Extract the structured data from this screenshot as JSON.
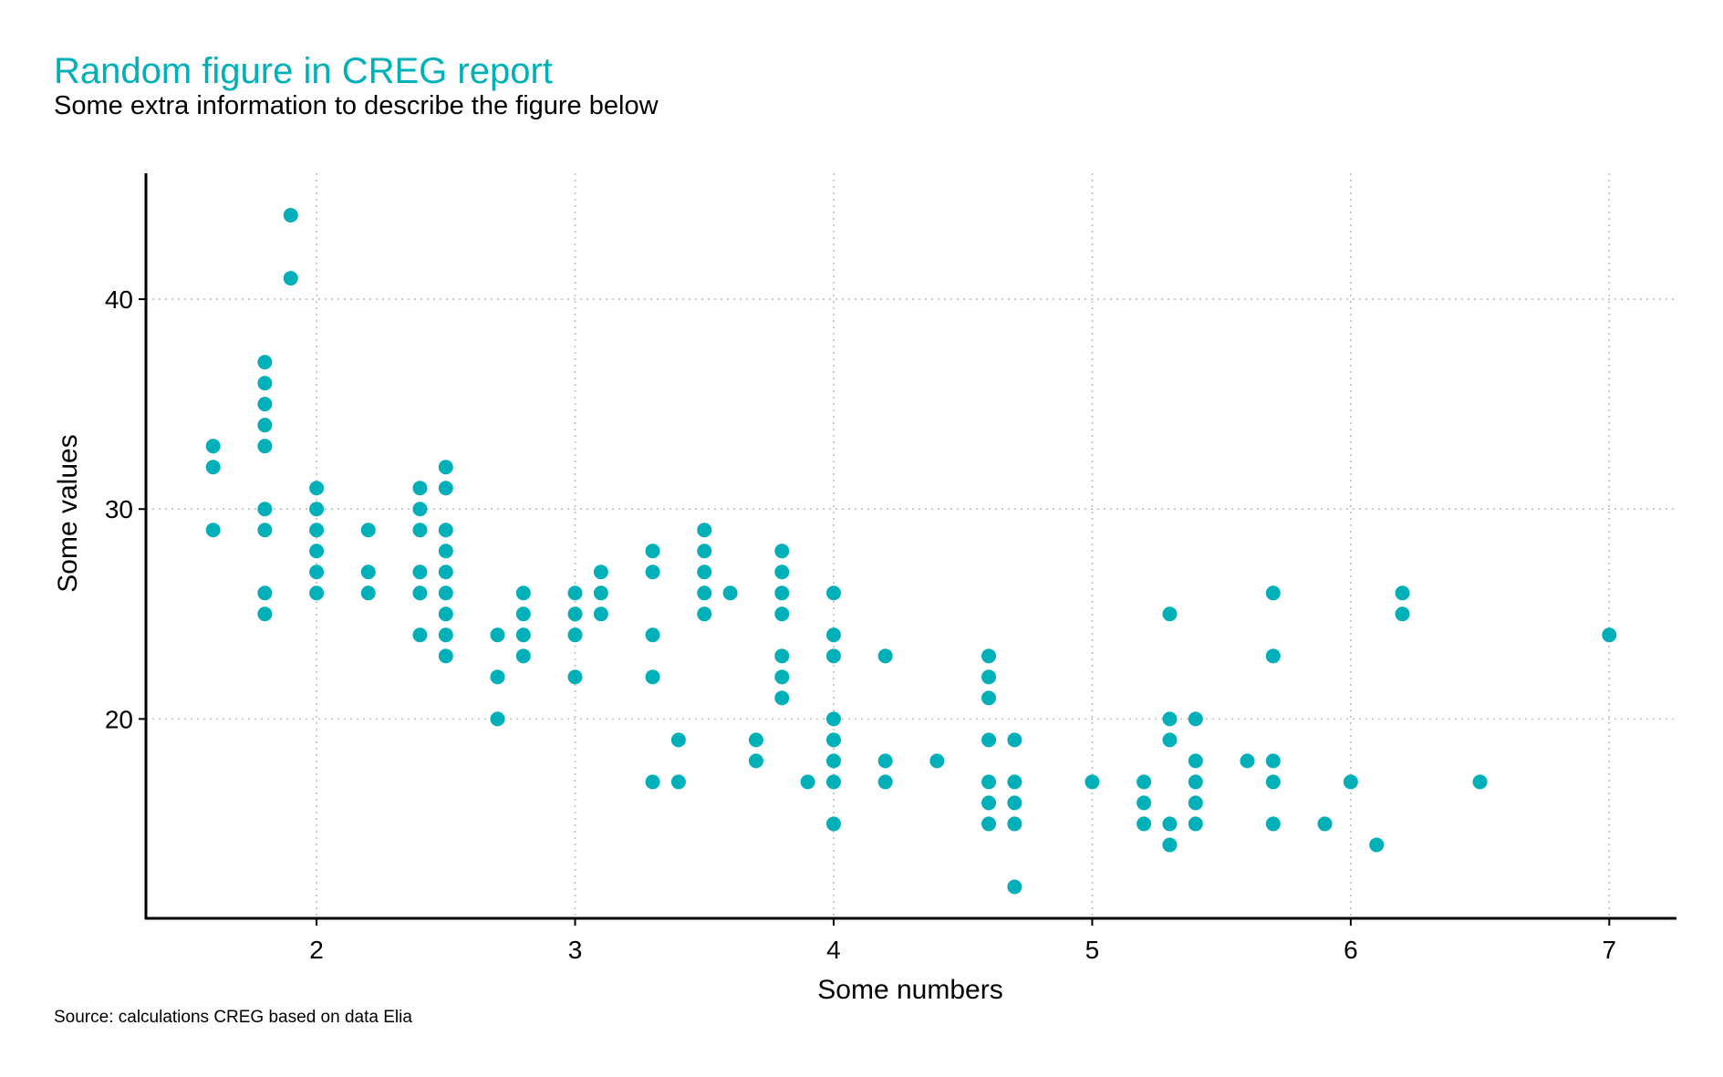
{
  "chart_data": {
    "type": "scatter",
    "title": "Random figure in CREG report",
    "subtitle": "Some extra information to describe the figure below",
    "caption": "Source: calculations CREG based on data Elia",
    "xlabel": "Some numbers",
    "ylabel": "Some values",
    "xlim": [
      1.34,
      7.26
    ],
    "ylim": [
      10.5,
      46.0
    ],
    "xticks": [
      2,
      3,
      4,
      5,
      6,
      7
    ],
    "yticks": [
      20,
      30,
      40
    ],
    "grid": true,
    "point_color": "#00B0B9",
    "points": [
      [
        1.6,
        33
      ],
      [
        1.6,
        32
      ],
      [
        1.6,
        29
      ],
      [
        1.8,
        37
      ],
      [
        1.8,
        36
      ],
      [
        1.8,
        35
      ],
      [
        1.8,
        34
      ],
      [
        1.8,
        33
      ],
      [
        1.8,
        30
      ],
      [
        1.8,
        29
      ],
      [
        1.8,
        26
      ],
      [
        1.8,
        25
      ],
      [
        1.9,
        44
      ],
      [
        1.9,
        41
      ],
      [
        2.0,
        31
      ],
      [
        2.0,
        30
      ],
      [
        2.0,
        29
      ],
      [
        2.0,
        28
      ],
      [
        2.0,
        27
      ],
      [
        2.0,
        26
      ],
      [
        2.2,
        29
      ],
      [
        2.2,
        27
      ],
      [
        2.2,
        26
      ],
      [
        2.4,
        31
      ],
      [
        2.4,
        30
      ],
      [
        2.4,
        29
      ],
      [
        2.4,
        27
      ],
      [
        2.4,
        26
      ],
      [
        2.4,
        24
      ],
      [
        2.5,
        32
      ],
      [
        2.5,
        31
      ],
      [
        2.5,
        29
      ],
      [
        2.5,
        28
      ],
      [
        2.5,
        27
      ],
      [
        2.5,
        26
      ],
      [
        2.5,
        25
      ],
      [
        2.5,
        24
      ],
      [
        2.5,
        23
      ],
      [
        2.7,
        24
      ],
      [
        2.7,
        22
      ],
      [
        2.7,
        20
      ],
      [
        2.8,
        26
      ],
      [
        2.8,
        25
      ],
      [
        2.8,
        24
      ],
      [
        2.8,
        23
      ],
      [
        3.0,
        26
      ],
      [
        3.0,
        25
      ],
      [
        3.0,
        24
      ],
      [
        3.0,
        22
      ],
      [
        3.1,
        27
      ],
      [
        3.1,
        26
      ],
      [
        3.1,
        25
      ],
      [
        3.3,
        28
      ],
      [
        3.3,
        27
      ],
      [
        3.3,
        24
      ],
      [
        3.3,
        22
      ],
      [
        3.3,
        17
      ],
      [
        3.4,
        19
      ],
      [
        3.4,
        17
      ],
      [
        3.5,
        29
      ],
      [
        3.5,
        28
      ],
      [
        3.5,
        27
      ],
      [
        3.5,
        26
      ],
      [
        3.5,
        25
      ],
      [
        3.6,
        26
      ],
      [
        3.7,
        19
      ],
      [
        3.7,
        18
      ],
      [
        3.8,
        28
      ],
      [
        3.8,
        27
      ],
      [
        3.8,
        26
      ],
      [
        3.8,
        25
      ],
      [
        3.8,
        23
      ],
      [
        3.8,
        22
      ],
      [
        3.8,
        21
      ],
      [
        3.9,
        17
      ],
      [
        4.0,
        26
      ],
      [
        4.0,
        24
      ],
      [
        4.0,
        23
      ],
      [
        4.0,
        20
      ],
      [
        4.0,
        19
      ],
      [
        4.0,
        18
      ],
      [
        4.0,
        17
      ],
      [
        4.0,
        15
      ],
      [
        4.2,
        23
      ],
      [
        4.2,
        18
      ],
      [
        4.2,
        17
      ],
      [
        4.4,
        18
      ],
      [
        4.6,
        23
      ],
      [
        4.6,
        22
      ],
      [
        4.6,
        21
      ],
      [
        4.6,
        19
      ],
      [
        4.6,
        17
      ],
      [
        4.6,
        16
      ],
      [
        4.6,
        15
      ],
      [
        4.7,
        19
      ],
      [
        4.7,
        17
      ],
      [
        4.7,
        16
      ],
      [
        4.7,
        15
      ],
      [
        4.7,
        12
      ],
      [
        5.0,
        17
      ],
      [
        5.2,
        17
      ],
      [
        5.2,
        16
      ],
      [
        5.2,
        15
      ],
      [
        5.3,
        25
      ],
      [
        5.3,
        20
      ],
      [
        5.3,
        19
      ],
      [
        5.3,
        15
      ],
      [
        5.3,
        14
      ],
      [
        5.4,
        20
      ],
      [
        5.4,
        18
      ],
      [
        5.4,
        17
      ],
      [
        5.4,
        16
      ],
      [
        5.4,
        15
      ],
      [
        5.6,
        18
      ],
      [
        5.7,
        26
      ],
      [
        5.7,
        23
      ],
      [
        5.7,
        18
      ],
      [
        5.7,
        17
      ],
      [
        5.7,
        15
      ],
      [
        5.9,
        15
      ],
      [
        6.0,
        17
      ],
      [
        6.1,
        14
      ],
      [
        6.2,
        26
      ],
      [
        6.2,
        25
      ],
      [
        6.5,
        17
      ],
      [
        7.0,
        24
      ]
    ]
  }
}
